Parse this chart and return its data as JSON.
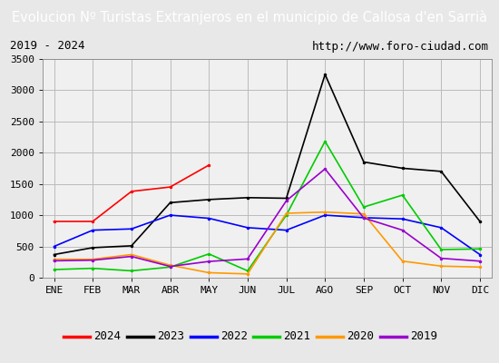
{
  "title": "Evolucion Nº Turistas Extranjeros en el municipio de Callosa d'en Sarrià",
  "subtitle_left": "2019 - 2024",
  "subtitle_right": "http://www.foro-ciudad.com",
  "x_labels": [
    "ENE",
    "FEB",
    "MAR",
    "ABR",
    "MAY",
    "JUN",
    "JUL",
    "AGO",
    "SEP",
    "OCT",
    "NOV",
    "DIC"
  ],
  "ylim": [
    0,
    3500
  ],
  "yticks": [
    0,
    500,
    1000,
    1500,
    2000,
    2500,
    3000,
    3500
  ],
  "series": {
    "2024": {
      "color": "#ff0000",
      "data": [
        900,
        900,
        1380,
        1450,
        1800,
        null,
        null,
        null,
        null,
        null,
        null,
        null
      ]
    },
    "2023": {
      "color": "#000000",
      "data": [
        370,
        480,
        510,
        1200,
        1250,
        1280,
        1270,
        3250,
        1850,
        1750,
        1700,
        900
      ]
    },
    "2022": {
      "color": "#0000ff",
      "data": [
        500,
        760,
        780,
        1000,
        950,
        800,
        760,
        1000,
        960,
        940,
        800,
        370
      ]
    },
    "2021": {
      "color": "#00cc00",
      "data": [
        130,
        150,
        110,
        170,
        380,
        110,
        1000,
        2180,
        1130,
        1320,
        450,
        460
      ]
    },
    "2020": {
      "color": "#ff9900",
      "data": [
        295,
        295,
        370,
        200,
        80,
        60,
        1030,
        1050,
        1020,
        265,
        185,
        170
      ]
    },
    "2019": {
      "color": "#9900cc",
      "data": [
        270,
        280,
        340,
        180,
        260,
        300,
        1230,
        1740,
        955,
        760,
        310,
        265
      ]
    }
  },
  "title_bg_color": "#4f86c6",
  "title_font_color": "#ffffff",
  "title_fontsize": 10.5,
  "subtitle_fontsize": 9,
  "tick_fontsize": 8,
  "legend_fontsize": 9,
  "grid_color": "#bbbbbb",
  "outer_bg_color": "#e8e8e8",
  "plot_bg_color": "#f0f0f0"
}
